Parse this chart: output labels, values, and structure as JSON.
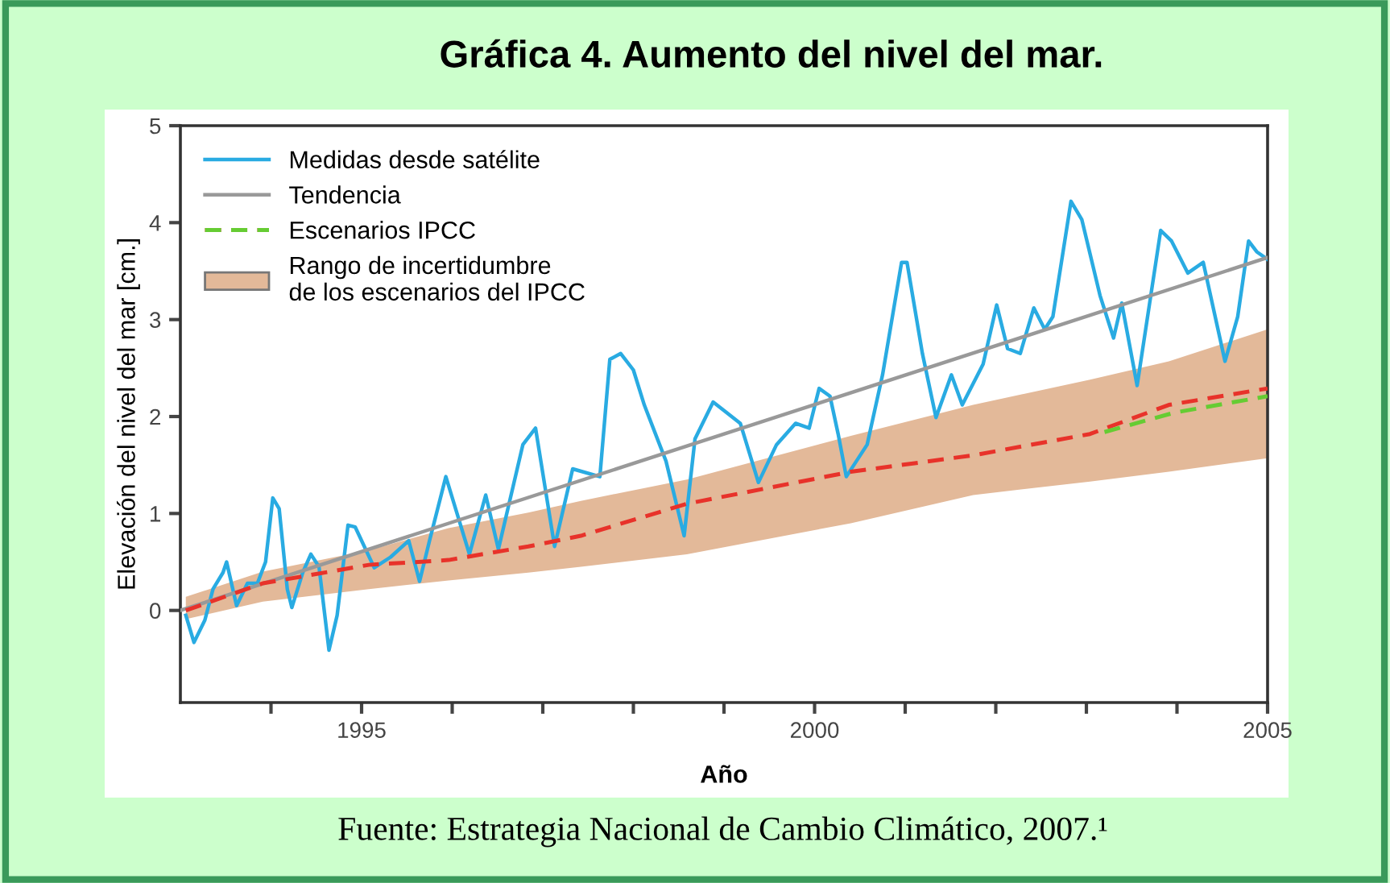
{
  "chart_data": {
    "type": "line",
    "title": "Gráfica 4. Aumento del nivel del mar.",
    "xlabel": "Año",
    "ylabel": "Elevación del nivel del mar [cm.]",
    "annotations": [
      "Rango de incertidumbre\nde los escenarios del IPCC",
      "Fuente: Estrategia Nacional de Cambio Climático, 2007.¹"
    ],
    "xlim": [
      1993,
      2005
    ],
    "ylim": [
      -0.95,
      5
    ],
    "xticks": [
      {
        "value": 1994,
        "label": null
      },
      1995,
      {
        "value": 1996,
        "label": null
      },
      {
        "value": 1997,
        "label": null
      },
      {
        "value": 1998,
        "label": null
      },
      {
        "value": 1999,
        "label": null
      },
      2000,
      {
        "value": 2001,
        "label": null
      },
      {
        "value": 2002,
        "label": null
      },
      {
        "value": 2003,
        "label": null
      },
      {
        "value": 2004,
        "label": null
      },
      2005
    ],
    "yticks": [
      0,
      1,
      2,
      3,
      4,
      5
    ],
    "legend": "top left",
    "series": [
      {
        "name": "Medidas desde satélite",
        "color": "#29abe2",
        "line_style": "solid",
        "x": [
          1993.06,
          1993.15,
          1993.27,
          1993.36,
          1993.47,
          1993.51,
          1993.62,
          1993.74,
          1993.85,
          1993.94,
          1994.02,
          1994.09,
          1994.18,
          1994.23,
          1994.35,
          1994.44,
          1994.53,
          1994.64,
          1994.73,
          1994.85,
          1994.93,
          1995.14,
          1995.32,
          1995.52,
          1995.64,
          1995.75,
          1995.93,
          1996.19,
          1996.37,
          1996.51,
          1996.78,
          1996.92,
          1997.13,
          1997.33,
          1997.63,
          1997.74,
          1997.86,
          1998.0,
          1998.12,
          1998.36,
          1998.56,
          1998.68,
          1998.88,
          1999.18,
          1999.38,
          1999.58,
          1999.79,
          1999.94,
          2000.05,
          2000.17,
          2000.26,
          2000.35,
          2000.58,
          2000.75,
          2000.96,
          2001.02,
          2001.19,
          2001.34,
          2001.51,
          2001.63,
          2001.86,
          2002.01,
          2002.13,
          2002.27,
          2002.42,
          2002.54,
          2002.63,
          2002.83,
          2002.95,
          2003.15,
          2003.3,
          2003.39,
          2003.56,
          2003.82,
          2003.94,
          2004.12,
          2004.29,
          2004.53,
          2004.67,
          2004.79,
          2004.88,
          2005.0
        ],
        "values": [
          -0.05,
          -0.33,
          -0.1,
          0.22,
          0.39,
          0.5,
          0.05,
          0.28,
          0.28,
          0.5,
          1.16,
          1.05,
          0.22,
          0.03,
          0.39,
          0.58,
          0.45,
          -0.41,
          -0.05,
          0.88,
          0.86,
          0.44,
          0.55,
          0.72,
          0.3,
          0.72,
          1.38,
          0.58,
          1.19,
          0.63,
          1.71,
          1.88,
          0.66,
          1.46,
          1.38,
          2.59,
          2.65,
          2.48,
          2.12,
          1.54,
          0.77,
          1.77,
          2.15,
          1.93,
          1.32,
          1.71,
          1.93,
          1.88,
          2.29,
          2.21,
          1.82,
          1.38,
          1.71,
          2.43,
          3.59,
          3.59,
          2.65,
          1.99,
          2.43,
          2.12,
          2.54,
          3.15,
          2.7,
          2.65,
          3.12,
          2.9,
          3.03,
          4.22,
          4.03,
          3.25,
          2.81,
          3.17,
          2.32,
          3.92,
          3.81,
          3.48,
          3.59,
          2.57,
          3.03,
          3.81,
          3.7,
          3.62
        ]
      },
      {
        "name": "Tendencia",
        "color": "#999999",
        "line_style": "solid",
        "x": [
          1993,
          2005
        ],
        "values": [
          0.0,
          3.64
        ]
      },
      {
        "name": "Escenarios IPCC",
        "color": "#e8322a",
        "line_style": "dashed",
        "x": [
          1993.06,
          1993.91,
          1995.08,
          1995.96,
          1996.84,
          1997.42,
          1998.59,
          2000.4,
          2001.75,
          2003.04,
          2003.91,
          2005.0
        ],
        "values": [
          0.0,
          0.28,
          0.47,
          0.52,
          0.66,
          0.77,
          1.1,
          1.43,
          1.6,
          1.82,
          2.12,
          2.29
        ],
        "lower": [
          -0.09,
          0.09,
          0.22,
          0.31,
          0.39,
          0.45,
          0.58,
          0.9,
          1.19,
          1.33,
          1.43,
          1.57
        ],
        "upper": [
          0.14,
          0.4,
          0.62,
          0.85,
          1.01,
          1.13,
          1.35,
          1.8,
          2.12,
          2.38,
          2.57,
          2.9
        ]
      },
      {
        "color": "#66cc33",
        "line_style": "dashed",
        "x": [
          2003.2,
          2003.97,
          2005.0
        ],
        "values": [
          1.84,
          2.04,
          2.21
        ]
      }
    ]
  }
}
